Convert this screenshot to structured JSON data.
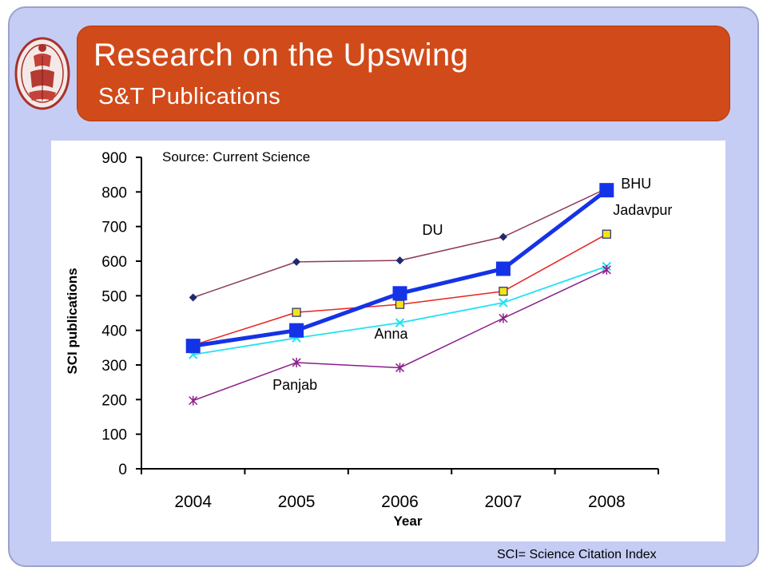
{
  "slide": {
    "title": "Research on the Upswing",
    "subtitle": "S&T Publications",
    "footnote": "SCI= Science Citation Index"
  },
  "colors": {
    "frame_bg": "#c5cdf5",
    "banner_bg": "#d14a19",
    "title_text": "#ffffff"
  },
  "logo": {
    "icon": "university-seal-icon"
  },
  "chart_data": {
    "type": "line",
    "source_note": "Source: Current Science",
    "xlabel": "Year",
    "ylabel": "SCI publications",
    "x": [
      "2004",
      "2005",
      "2006",
      "2007",
      "2008"
    ],
    "ylim": [
      0,
      900
    ],
    "yticks": [
      0,
      100,
      200,
      300,
      400,
      500,
      600,
      700,
      800,
      900
    ],
    "grid": false,
    "series": [
      {
        "name": "DU",
        "values": [
          495,
          598,
          602,
          670,
          810
        ],
        "color": "#8b3a5a",
        "marker": "diamond",
        "marker_color": "#1f2a6e",
        "stroke_width": 1.5
      },
      {
        "name": "Jadavpur",
        "values": [
          357,
          452,
          475,
          513,
          678
        ],
        "color": "#e8231f",
        "marker": "square",
        "marker_color": "#f5e21a",
        "stroke_width": 1.5
      },
      {
        "name": "",
        "values": [
          330,
          378,
          422,
          480,
          585
        ],
        "color": "#22e1f0",
        "marker": "x",
        "marker_color": "#22e1f0",
        "stroke_width": 1.8
      },
      {
        "name": "Panjab",
        "values": [
          197,
          307,
          292,
          435,
          575
        ],
        "color": "#8a1d8a",
        "marker": "asterisk",
        "marker_color": "#8a1d8a",
        "stroke_width": 1.5
      },
      {
        "name": "BHU",
        "values": [
          355,
          400,
          507,
          578,
          805
        ],
        "color": "#1433e6",
        "marker": "square",
        "marker_color": "#1433e6",
        "stroke_width": 5
      }
    ],
    "labels": [
      {
        "text": "BHU",
        "series": 4
      },
      {
        "text": "Jadavpur",
        "series": 1
      },
      {
        "text": "DU",
        "series": 0
      },
      {
        "text": "Anna",
        "series": 2
      },
      {
        "text": "Panjab",
        "series": 3
      }
    ]
  }
}
